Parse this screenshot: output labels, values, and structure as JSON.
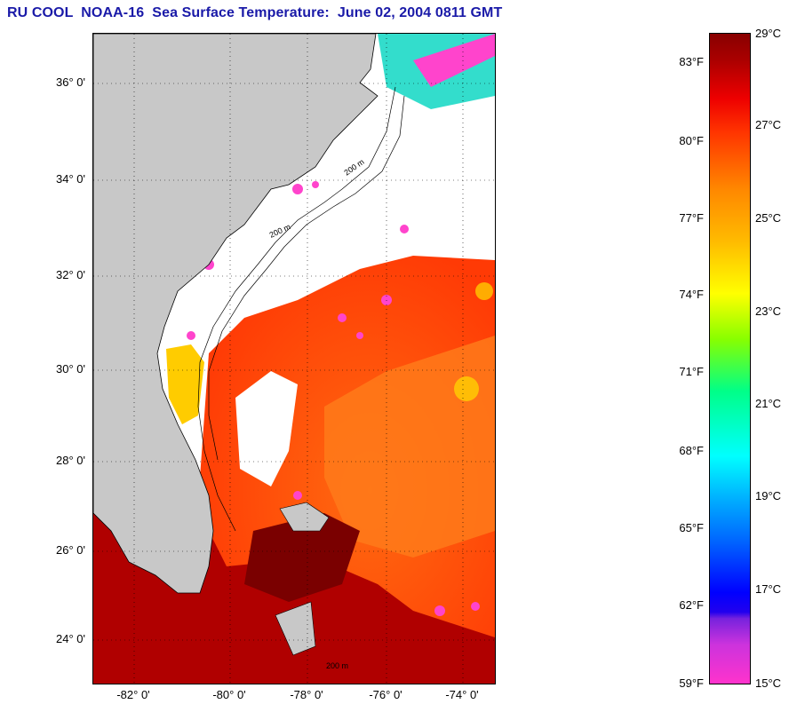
{
  "title": "RU COOL  NOAA-16  Sea Surface Temperature:  June 02, 2004 0811 GMT",
  "map": {
    "lat_labels": [
      "36° 0'",
      "34° 0'",
      "32° 0'",
      "30° 0'",
      "28° 0'",
      "26° 0'",
      "24° 0'"
    ],
    "lon_labels": [
      "-82° 0'",
      "-80° 0'",
      "-78° 0'",
      "-76° 0'",
      "-74° 0'"
    ],
    "isobath_labels": [
      "200 m",
      "200 m",
      "200 m"
    ],
    "colors": {
      "land": "#c8c8c8",
      "cloud": "#ffffff",
      "warm_water": "#ff4a10",
      "hot_water": "#b00000",
      "gulf_stream": "#ff7a1a",
      "cool_shelf": "#ffcc00"
    }
  },
  "colorbar": {
    "fahrenheit_labels": [
      "83°F",
      "80°F",
      "77°F",
      "74°F",
      "71°F",
      "68°F",
      "65°F",
      "62°F",
      "59°F"
    ],
    "celsius_labels": [
      "29°C",
      "27°C",
      "25°C",
      "23°C",
      "21°C",
      "19°C",
      "17°C",
      "15°C"
    ]
  }
}
